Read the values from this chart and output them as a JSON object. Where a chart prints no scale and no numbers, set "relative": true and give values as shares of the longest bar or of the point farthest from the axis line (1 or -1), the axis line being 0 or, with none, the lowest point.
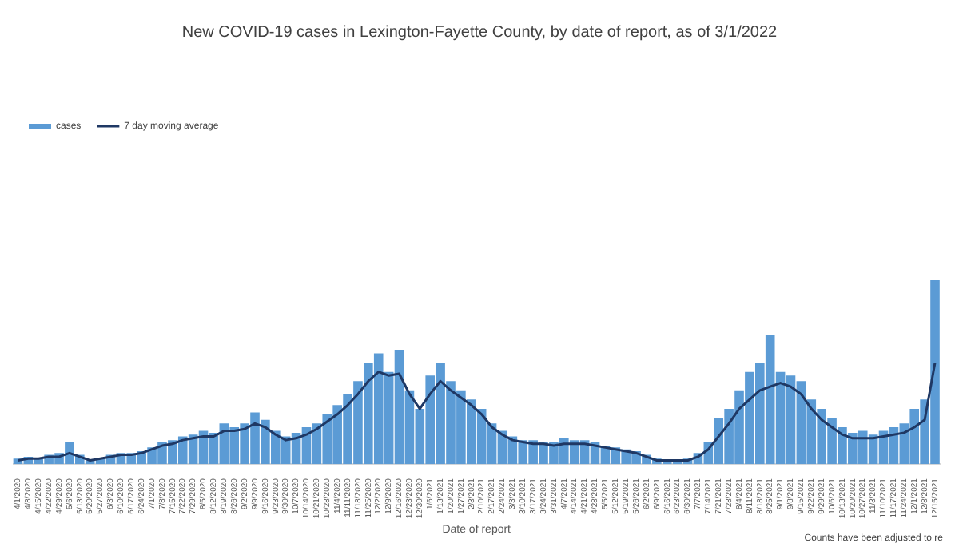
{
  "chart_data": {
    "type": "bar",
    "title": "New COVID-19 cases in Lexington-Fayette County, by date of report, as of 3/1/2022",
    "xlabel": "Date of report",
    "relative": true,
    "legend": "top left",
    "grid": false,
    "annotations": [
      "Counts have been adjusted to re"
    ],
    "categories": [
      "4/1/2020",
      "4/8/2020",
      "4/15/2020",
      "4/22/2020",
      "4/29/2020",
      "5/6/2020",
      "5/13/2020",
      "5/20/2020",
      "5/27/2020",
      "6/3/2020",
      "6/10/2020",
      "6/17/2020",
      "6/24/2020",
      "7/1/2020",
      "7/8/2020",
      "7/15/2020",
      "7/22/2020",
      "7/29/2020",
      "8/5/2020",
      "8/12/2020",
      "8/19/2020",
      "8/26/2020",
      "9/2/2020",
      "9/9/2020",
      "9/16/2020",
      "9/23/2020",
      "9/30/2020",
      "10/7/2020",
      "10/14/2020",
      "10/21/2020",
      "10/28/2020",
      "11/4/2020",
      "11/11/2020",
      "11/18/2020",
      "11/25/2020",
      "12/2/2020",
      "12/9/2020",
      "12/16/2020",
      "12/23/2020",
      "12/30/2020",
      "1/6/2021",
      "1/13/2021",
      "1/20/2021",
      "1/27/2021",
      "2/3/2021",
      "2/10/2021",
      "2/17/2021",
      "2/24/2021",
      "3/3/2021",
      "3/10/2021",
      "3/17/2021",
      "3/24/2021",
      "3/31/2021",
      "4/7/2021",
      "4/14/2021",
      "4/21/2021",
      "4/28/2021",
      "5/5/2021",
      "5/12/2021",
      "5/19/2021",
      "5/26/2021",
      "6/2/2021",
      "6/9/2021",
      "6/16/2021",
      "6/23/2021",
      "6/30/2021",
      "7/7/2021",
      "7/14/2021",
      "7/21/2021",
      "7/28/2021",
      "8/4/2021",
      "8/11/2021",
      "8/18/2021",
      "8/25/2021",
      "9/1/2021",
      "9/8/2021",
      "9/15/2021",
      "9/22/2021",
      "9/29/2021",
      "10/6/2021",
      "10/13/2021",
      "10/20/2021",
      "10/27/2021",
      "11/3/2021",
      "11/10/2021",
      "11/17/2021",
      "11/24/2021",
      "12/1/2021",
      "12/8/2021",
      "12/15/2021"
    ],
    "series": [
      {
        "name": "cases",
        "color": "#5b9bd5",
        "values": [
          0.03,
          0.04,
          0.03,
          0.05,
          0.06,
          0.12,
          0.05,
          0.02,
          0.03,
          0.05,
          0.06,
          0.06,
          0.07,
          0.09,
          0.12,
          0.13,
          0.15,
          0.16,
          0.18,
          0.17,
          0.22,
          0.2,
          0.22,
          0.28,
          0.24,
          0.18,
          0.15,
          0.17,
          0.2,
          0.22,
          0.27,
          0.32,
          0.38,
          0.45,
          0.55,
          0.6,
          0.5,
          0.62,
          0.4,
          0.3,
          0.48,
          0.55,
          0.45,
          0.4,
          0.35,
          0.3,
          0.22,
          0.18,
          0.15,
          0.13,
          0.13,
          0.12,
          0.12,
          0.14,
          0.13,
          0.13,
          0.12,
          0.1,
          0.09,
          0.08,
          0.07,
          0.05,
          0.03,
          0.02,
          0.02,
          0.03,
          0.06,
          0.12,
          0.25,
          0.3,
          0.4,
          0.5,
          0.55,
          0.7,
          0.5,
          0.48,
          0.45,
          0.35,
          0.3,
          0.25,
          0.2,
          0.17,
          0.18,
          0.16,
          0.18,
          0.2,
          0.22,
          0.3,
          0.35,
          1
        ]
      },
      {
        "name": "7 day moving average",
        "type": "line",
        "color": "#1f3864",
        "values": [
          0.02,
          0.03,
          0.03,
          0.04,
          0.04,
          0.06,
          0.04,
          0.02,
          0.03,
          0.04,
          0.05,
          0.05,
          0.06,
          0.08,
          0.1,
          0.11,
          0.13,
          0.14,
          0.15,
          0.15,
          0.18,
          0.18,
          0.19,
          0.22,
          0.2,
          0.16,
          0.13,
          0.14,
          0.16,
          0.19,
          0.23,
          0.27,
          0.32,
          0.38,
          0.45,
          0.5,
          0.48,
          0.49,
          0.38,
          0.3,
          0.38,
          0.45,
          0.4,
          0.36,
          0.32,
          0.27,
          0.2,
          0.16,
          0.13,
          0.12,
          0.11,
          0.11,
          0.1,
          0.11,
          0.11,
          0.11,
          0.1,
          0.09,
          0.08,
          0.07,
          0.06,
          0.04,
          0.02,
          0.02,
          0.02,
          0.02,
          0.04,
          0.08,
          0.15,
          0.22,
          0.3,
          0.35,
          0.4,
          0.42,
          0.44,
          0.42,
          0.38,
          0.3,
          0.24,
          0.2,
          0.16,
          0.14,
          0.14,
          0.14,
          0.15,
          0.16,
          0.17,
          0.2,
          0.24,
          0.55
        ]
      }
    ]
  }
}
